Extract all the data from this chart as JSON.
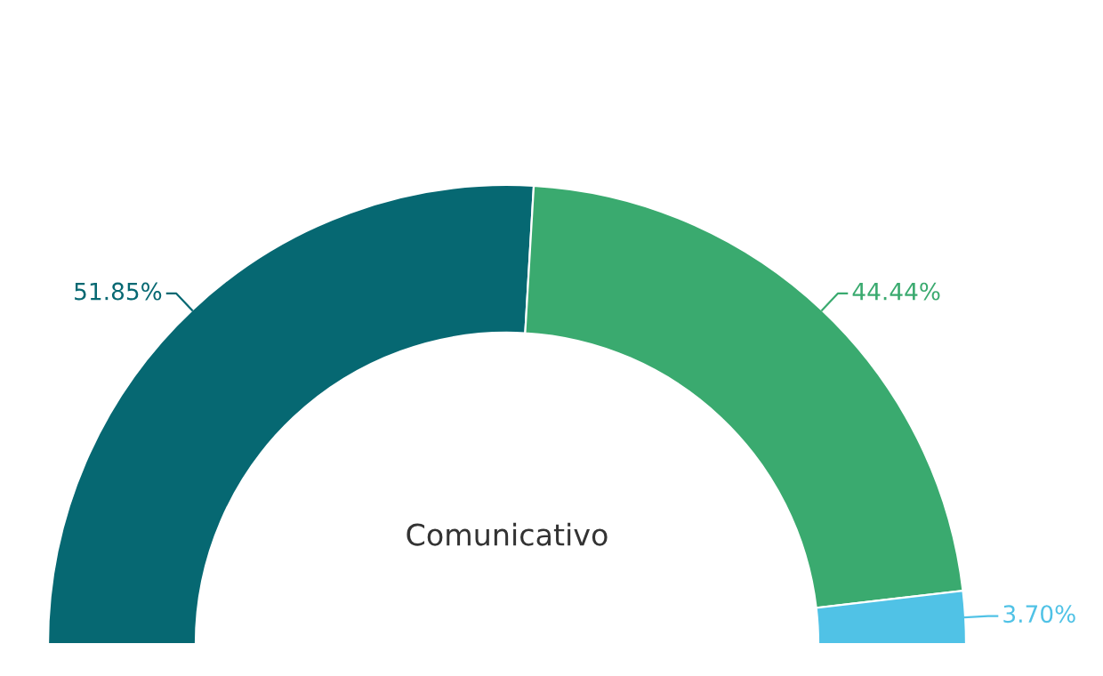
{
  "chart_data": {
    "type": "donut",
    "title": "Comunicativo",
    "categories": [
      null,
      null,
      null
    ],
    "values": [
      51.85,
      44.44,
      3.7
    ],
    "value_labels": [
      "51.85%",
      "44.44%",
      "3.70%"
    ],
    "colors": [
      "#066872",
      "#3aaa6f",
      "#50c2e6"
    ]
  }
}
